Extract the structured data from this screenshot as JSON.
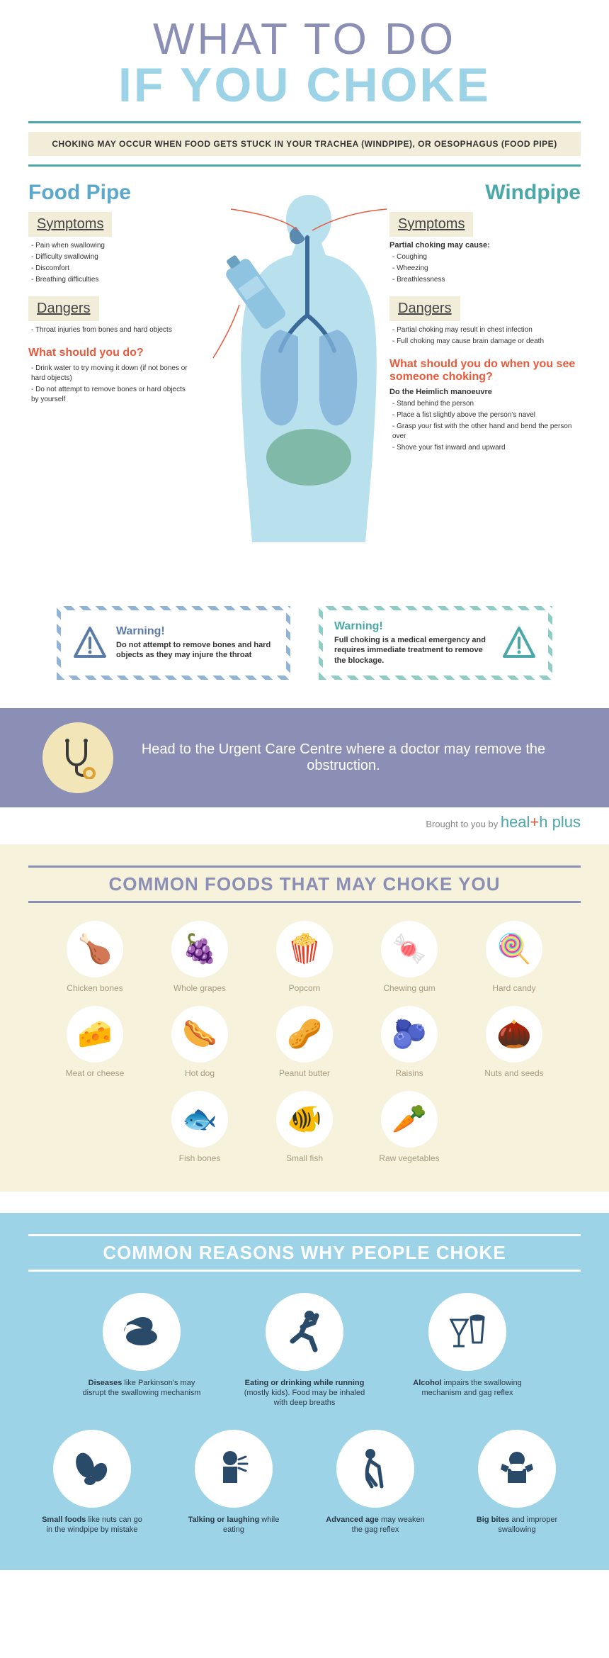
{
  "title": {
    "line1": "WHAT TO DO",
    "line2": "IF YOU CHOKE"
  },
  "intro": "CHOKING MAY OCCUR WHEN FOOD GETS STUCK IN YOUR TRACHEA (WINDPIPE), OR OESOPHAGUS (FOOD PIPE)",
  "colors": {
    "purple": "#8b8fb5",
    "lightblue": "#9dd3e6",
    "teal": "#4aa8a8",
    "blue": "#5ba8cc",
    "cream": "#f2edd9",
    "orange": "#e85a3c"
  },
  "foodpipe": {
    "heading": "Food Pipe",
    "symptoms": {
      "title": "Symptoms",
      "items": [
        "Pain when swallowing",
        "Difficulty swallowing",
        "Discomfort",
        "Breathing difficulties"
      ]
    },
    "dangers": {
      "title": "Dangers",
      "items": [
        "Throat injuries from bones and hard objects"
      ]
    },
    "action": {
      "title": "What should you do?",
      "items": [
        "Drink water to try moving it down (if not bones or hard objects)",
        "Do not attempt to remove bones or hard objects by yourself"
      ]
    }
  },
  "windpipe": {
    "heading": "Windpipe",
    "symptoms": {
      "title": "Symptoms",
      "sub": "Partial choking may cause:",
      "items": [
        "Coughing",
        "Wheezing",
        "Breathlessness"
      ]
    },
    "dangers": {
      "title": "Dangers",
      "items": [
        "Partial choking may result in chest infection",
        "Full choking may cause brain damage or death"
      ]
    },
    "action": {
      "title": "What should you do when you see someone choking?",
      "sub": "Do the Heimlich manoeuvre",
      "items": [
        "Stand behind the person",
        "Place a fist slightly above the person's navel",
        "Grasp your fist with the other hand and bend the person over",
        "Shove your fist inward and upward"
      ]
    }
  },
  "warnings": {
    "left": {
      "title": "Warning!",
      "text": "Do not attempt to remove bones and hard objects as they may injure the throat"
    },
    "right": {
      "title": "Warning!",
      "text": "Full choking is a medical emergency and requires immediate treatment to remove the blockage."
    }
  },
  "urgent": "Head to the Urgent Care Centre where a doctor may remove the obstruction.",
  "attribution": {
    "prefix": "Brought to you by ",
    "brand1": "heal",
    "brand_cross": "+",
    "brand2": "h plus"
  },
  "foods": {
    "title": "COMMON FOODS THAT MAY CHOKE YOU",
    "items": [
      {
        "label": "Chicken bones",
        "emoji": "🍗"
      },
      {
        "label": "Whole grapes",
        "emoji": "🍇"
      },
      {
        "label": "Popcorn",
        "emoji": "🍿"
      },
      {
        "label": "Chewing gum",
        "emoji": "🍬"
      },
      {
        "label": "Hard candy",
        "emoji": "🍭"
      },
      {
        "label": "Meat or cheese",
        "emoji": "🧀"
      },
      {
        "label": "Hot dog",
        "emoji": "🌭"
      },
      {
        "label": "Peanut butter",
        "emoji": "🥜"
      },
      {
        "label": "Raisins",
        "emoji": "🫐"
      },
      {
        "label": "Nuts and seeds",
        "emoji": "🌰"
      },
      {
        "label": "Fish bones",
        "emoji": "🐟"
      },
      {
        "label": "Small fish",
        "emoji": "🐠"
      },
      {
        "label": "Raw vegetables",
        "emoji": "🥕"
      }
    ]
  },
  "reasons": {
    "title": "COMMON REASONS WHY PEOPLE CHOKE",
    "items": [
      {
        "label_html": "<b>Diseases</b> like Parkinson's may disrupt the swallowing mechanism",
        "icon": "hands"
      },
      {
        "label_html": "<b>Eating or drinking while running</b> (mostly kids). Food may be inhaled with deep breaths",
        "icon": "run"
      },
      {
        "label_html": "<b>Alcohol</b> impairs the swallowing mechanism and gag reflex",
        "icon": "drink"
      },
      {
        "label_html": "<b>Small foods</b> like nuts can go in the windpipe by mistake",
        "icon": "nuts"
      },
      {
        "label_html": "<b>Talking or laughing</b> while eating",
        "icon": "talk"
      },
      {
        "label_html": "<b>Advanced age</b> may weaken the gag reflex",
        "icon": "old"
      },
      {
        "label_html": "<b>Big bites</b> and improper swallowing",
        "icon": "bite"
      }
    ]
  }
}
